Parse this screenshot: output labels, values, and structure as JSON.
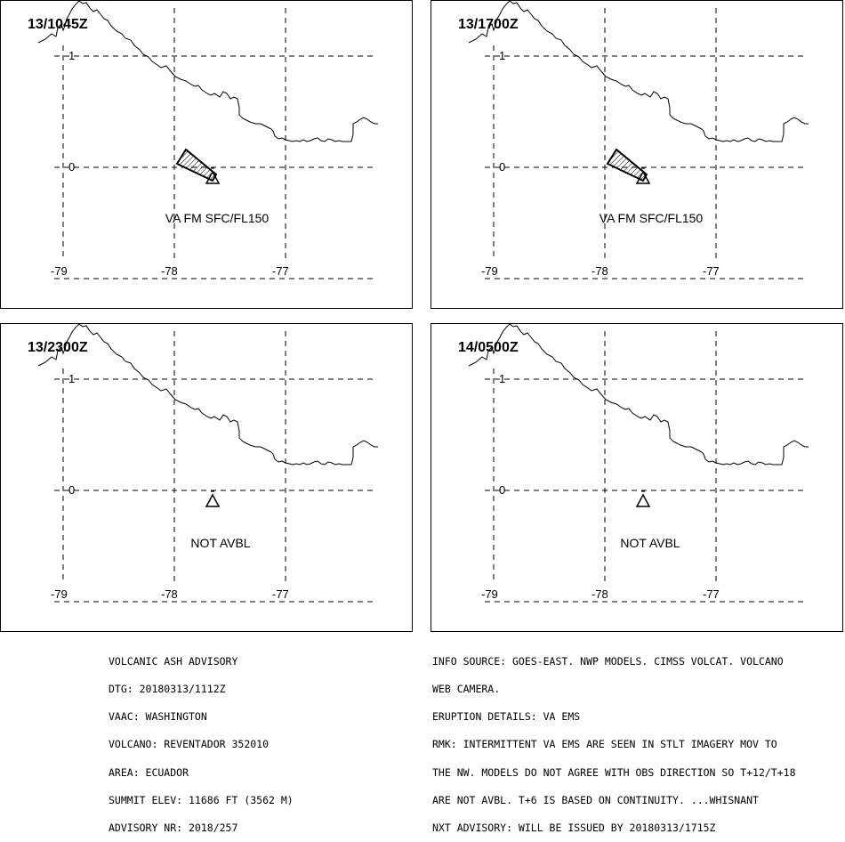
{
  "panels": [
    {
      "time": "13/1045Z",
      "label": "VA FM SFC/FL150",
      "plume": true
    },
    {
      "time": "13/1700Z",
      "label": "VA FM SFC/FL150",
      "plume": true
    },
    {
      "time": "13/2300Z",
      "label": "NOT AVBL",
      "plume": false
    },
    {
      "time": "14/0500Z",
      "label": "NOT AVBL",
      "plume": false
    }
  ],
  "axes": {
    "lat_labels": [
      "1",
      "0"
    ],
    "lon_labels": [
      "-79",
      "-78",
      "-77"
    ]
  },
  "advisory_left": [
    "VOLCANIC ASH ADVISORY",
    "DTG: 20180313/1112Z",
    "VAAC: WASHINGTON",
    "VOLCANO: REVENTADOR 352010",
    "AREA: ECUADOR",
    "SUMMIT ELEV: 11686 FT (3562 M)",
    "ADVISORY NR: 2018/257"
  ],
  "advisory_right": [
    "INFO SOURCE: GOES-EAST. NWP MODELS. CIMSS VOLCAT. VOLCANO",
    "WEB CAMERA.",
    "ERUPTION DETAILS: VA EMS",
    "RMK: INTERMITTENT VA EMS ARE SEEN IN STLT IMAGERY MOV TO",
    "THE NW. MODELS DO NOT AGREE WITH OBS DIRECTION SO T+12/T+18",
    "ARE NOT AVBL. T+6 IS BASED ON CONTINUITY. ...WHISNANT",
    "NXT ADVISORY: WILL BE ISSUED BY 20180313/1715Z"
  ]
}
